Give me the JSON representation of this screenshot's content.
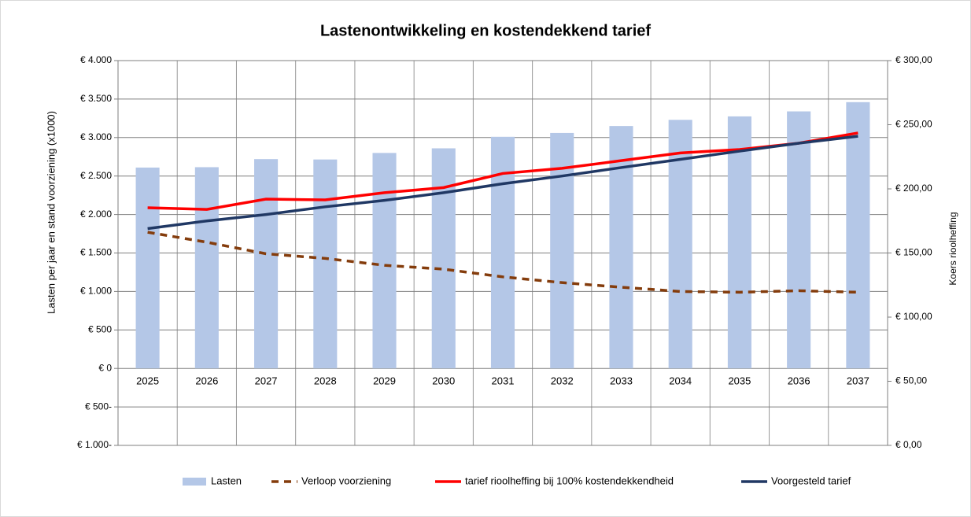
{
  "chart_data": {
    "type": "bar_line",
    "title": "Lastenontwikkeling en kostendekkend tarief",
    "ylabel": "Lasten per jaar en stand voorziening (x1000)",
    "y2label": "Koers rioolheffing",
    "categories": [
      "2025",
      "2026",
      "2027",
      "2028",
      "2029",
      "2030",
      "2031",
      "2032",
      "2033",
      "2034",
      "2035",
      "2036",
      "2037"
    ],
    "series": [
      {
        "name": "Lasten",
        "kind": "bar",
        "color": "#b4c7e7",
        "values": [
          2610,
          2615,
          2720,
          2715,
          2800,
          2860,
          3010,
          3060,
          3150,
          3230,
          3275,
          3340,
          3460
        ]
      },
      {
        "name": "Verloop voorziening",
        "kind": "line",
        "dashed": true,
        "color": "#843c0c",
        "values": [
          1770,
          1640,
          1490,
          1430,
          1340,
          1290,
          1190,
          1115,
          1055,
          1000,
          990,
          1010,
          990
        ]
      },
      {
        "name": "tarief rioolheffing bij 100% kostendekkendheid",
        "kind": "line",
        "axis": "y2",
        "color": "#ff0000",
        "values": [
          185.3,
          184,
          192,
          191.4,
          197,
          201,
          212,
          216,
          222,
          228,
          230.7,
          235.6,
          243.6
        ]
      },
      {
        "name": "Voorgesteld tarief",
        "kind": "line",
        "axis": "y2",
        "color": "#203864",
        "values": [
          169,
          175,
          180,
          186,
          191,
          197,
          204,
          210,
          216.6,
          223,
          229.4,
          235.6,
          241
        ]
      }
    ],
    "ylim": [
      -1000,
      4000
    ],
    "yticks": [
      {
        "value": -1000,
        "label": "€ 1.000-"
      },
      {
        "value": -500,
        "label": "€ 500-"
      },
      {
        "value": 0,
        "label": "€ 0"
      },
      {
        "value": 500,
        "label": "€ 500"
      },
      {
        "value": 1000,
        "label": "€ 1.000"
      },
      {
        "value": 1500,
        "label": "€ 1.500"
      },
      {
        "value": 2000,
        "label": "€ 2.000"
      },
      {
        "value": 2500,
        "label": "€ 2.500"
      },
      {
        "value": 3000,
        "label": "€ 3.000"
      },
      {
        "value": 3500,
        "label": "€ 3.500"
      },
      {
        "value": 4000,
        "label": "€ 4.000"
      }
    ],
    "negative_tick_color": "#ff0000",
    "y2lim": [
      0,
      300
    ],
    "y2ticks": [
      {
        "value": 0,
        "label": "€ 0,00"
      },
      {
        "value": 50,
        "label": "€ 50,00"
      },
      {
        "value": 100,
        "label": "€ 100,00"
      },
      {
        "value": 150,
        "label": "€ 150,00"
      },
      {
        "value": 200,
        "label": "€ 200,00"
      },
      {
        "value": 250,
        "label": "€ 250,00"
      },
      {
        "value": 300,
        "label": "€ 300,00"
      }
    ],
    "grid": true,
    "legend": "bottom"
  }
}
